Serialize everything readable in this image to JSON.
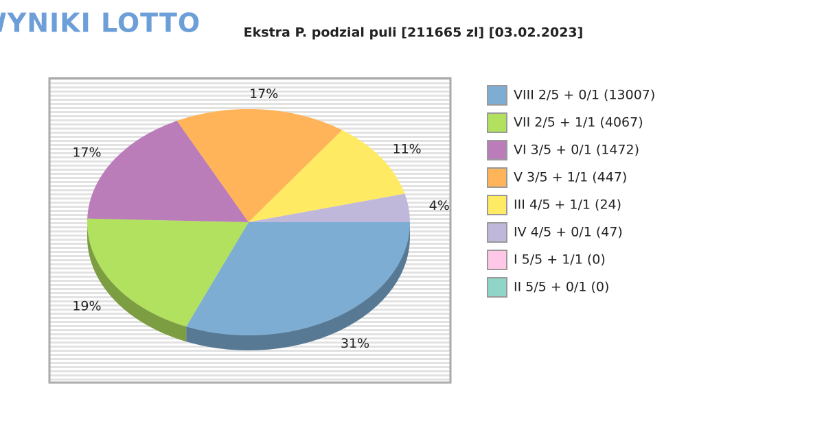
{
  "logo": "WYNIKI LOTTO",
  "chart_data": {
    "type": "pie",
    "title": "Ekstra P. podzial puli [211665 zl] [03.02.2023]",
    "categories": [
      "VIII 2/5 + 0/1 (13007)",
      "VII 2/5 + 1/1 (4067)",
      "VI 3/5 + 0/1 (1472)",
      "V 3/5 + 1/1 (447)",
      "III 4/5 + 1/1 (24)",
      "IV 4/5 + 0/1 (47)",
      "I 5/5 + 1/1 (0)",
      "II 5/5 + 0/1 (0)"
    ],
    "values": [
      31,
      19,
      17,
      17,
      11,
      4,
      0,
      0
    ],
    "value_labels": [
      "31%",
      "19%",
      "17%",
      "17%",
      "11%",
      "4%",
      null,
      null
    ],
    "colors": [
      "#7eadd4",
      "#b2e05f",
      "#ba7dba",
      "#ffb45a",
      "#ffea64",
      "#c0b8db",
      "#ffc8e6",
      "#8fd6c8"
    ],
    "legend": "right"
  }
}
